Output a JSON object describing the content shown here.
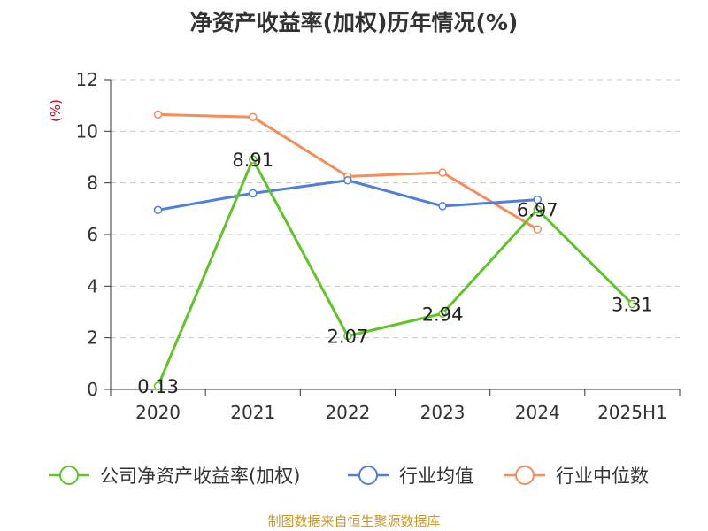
{
  "source_note": "制图数据来自恒生聚源数据库",
  "chart_data": {
    "type": "line",
    "title": "净资产收益率(加权)历年情况(%)",
    "ylabel": "(%)",
    "xlabel": "",
    "categories": [
      "2020",
      "2021",
      "2022",
      "2023",
      "2024",
      "2025H1"
    ],
    "ylim": [
      0,
      12
    ],
    "yticks": [
      "0",
      "2",
      "4",
      "6",
      "8",
      "10",
      "12"
    ],
    "grid": true,
    "legend_position": "bottom",
    "series": [
      {
        "name": "公司净资产收益率(加权)",
        "color": "#5ec427",
        "values": [
          0.13,
          8.91,
          2.07,
          2.94,
          6.97,
          3.31
        ],
        "labels": [
          "0.13",
          "8.91",
          "2.07",
          "2.94",
          "6.97",
          "3.31"
        ]
      },
      {
        "name": "行业均值",
        "color": "#4f7fd7",
        "values": [
          6.95,
          7.6,
          8.1,
          7.1,
          7.35,
          null
        ]
      },
      {
        "name": "行业中位数",
        "color": "#f58d5b",
        "values": [
          10.65,
          10.55,
          8.25,
          8.4,
          6.2,
          null
        ]
      }
    ]
  }
}
